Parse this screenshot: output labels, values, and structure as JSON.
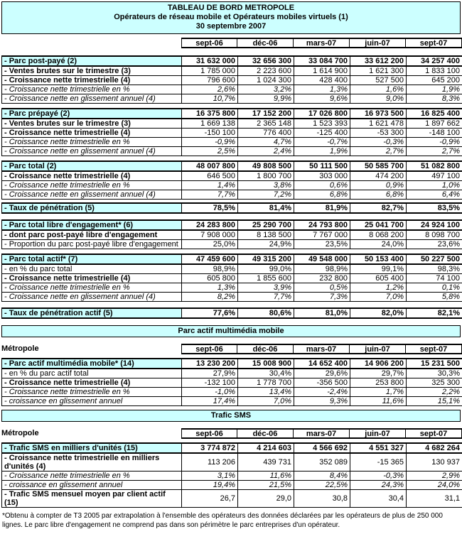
{
  "title": {
    "line1": "TABLEAU DE BORD METROPOLE",
    "line2": "Opérateurs de réseau mobile et Opérateurs mobiles virtuels (1)",
    "line3": "30 septembre 2007"
  },
  "columns": [
    "sept-06",
    "déc-06",
    "mars-07",
    "juin-07",
    "sept-07"
  ],
  "sections": {
    "metropole_label": "Métropole",
    "multimedia_banner": "Parc actif multimédia mobile",
    "sms_banner": "Trafic SMS"
  },
  "colors": {
    "accent_cyan": "#CCFFFF",
    "border": "#000000"
  },
  "blocks": {
    "postpaye": {
      "rows": [
        {
          "label": "- Parc post-payé (2)",
          "style": "head",
          "values": [
            "31 632 000",
            "32 656 300",
            "33 084 700",
            "33 612 200",
            "34 257 400"
          ]
        },
        {
          "label": "- Ventes brutes sur le trimestre (3)",
          "style": "bold",
          "values": [
            "1 785 000",
            "2 223 600",
            "1 614 900",
            "1 621 300",
            "1 833 100"
          ]
        },
        {
          "label": "- Croissance nette trimestrielle (4)",
          "style": "bold",
          "values": [
            "796 600",
            "1 024 300",
            "428 400",
            "527 500",
            "645 200"
          ]
        },
        {
          "label": "- Croissance nette trimestrielle en %",
          "style": "italic",
          "values": [
            "2,6%",
            "3,2%",
            "1,3%",
            "1,6%",
            "1,9%"
          ]
        },
        {
          "label": "- Croissance nette en glissement annuel (4)",
          "style": "italic",
          "values": [
            "10,7%",
            "9,9%",
            "9,6%",
            "9,0%",
            "8,3%"
          ]
        }
      ]
    },
    "prepaye": {
      "rows": [
        {
          "label": "- Parc prépayé (2)",
          "style": "head",
          "values": [
            "16 375 800",
            "17 152 200",
            "17 026 800",
            "16 973 500",
            "16 825 400"
          ]
        },
        {
          "label": "- Ventes brutes sur le trimestre (3)",
          "style": "bold",
          "values": [
            "1 669 138",
            "2 365 148",
            "1 523 393",
            "1 621 478",
            "1 897 662"
          ]
        },
        {
          "label": "- Croissance nette trimestrielle (4)",
          "style": "bold",
          "values": [
            "-150 100",
            "776 400",
            "-125 400",
            "-53 300",
            "-148 100"
          ]
        },
        {
          "label": "- Croissance nette trimestrielle en %",
          "style": "italic",
          "values": [
            "-0,9%",
            "4,7%",
            "-0,7%",
            "-0,3%",
            "-0,9%"
          ]
        },
        {
          "label": "- Croissance nette en glissement annuel (4)",
          "style": "italic",
          "values": [
            "2,5%",
            "2,4%",
            "1,9%",
            "2,7%",
            "2,7%"
          ]
        }
      ]
    },
    "total": {
      "rows": [
        {
          "label": "- Parc total (2)",
          "style": "head",
          "values": [
            "48 007 800",
            "49 808 500",
            "50 111 500",
            "50 585 700",
            "51 082 800"
          ]
        },
        {
          "label": "- Croissance nette trimestrielle (4)",
          "style": "bold",
          "values": [
            "646 500",
            "1 800 700",
            "303 000",
            "474 200",
            "497 100"
          ]
        },
        {
          "label": "- Croissance nette trimestrielle en %",
          "style": "italic",
          "values": [
            "1,4%",
            "3,8%",
            "0,6%",
            "0,9%",
            "1,0%"
          ]
        },
        {
          "label": "- Croissance nette en glissement annuel (4)",
          "style": "italic",
          "values": [
            "7,7%",
            "7,2%",
            "6,8%",
            "6,8%",
            "6,4%"
          ]
        }
      ]
    },
    "penetration": {
      "rows": [
        {
          "label": "- Taux de pénétration (5)",
          "style": "head",
          "values": [
            "78,5%",
            "81,4%",
            "81,9%",
            "82,7%",
            "83,5%"
          ]
        }
      ]
    },
    "libre": {
      "rows": [
        {
          "label": "- Parc total libre d'engagement* (6)",
          "style": "head",
          "values": [
            "24 283 800",
            "25 290 700",
            "24 793 800",
            "25 041 700",
            "24 924 100"
          ]
        },
        {
          "label": "- dont parc post-payé libre d'engagement",
          "style": "bold",
          "values": [
            "7 908 000",
            "8 138 500",
            "7 767 000",
            "8 068 200",
            "8 098 700"
          ]
        },
        {
          "label": "- Proportion du parc post-payé libre d'engagement",
          "style": "plain",
          "values": [
            "25,0%",
            "24,9%",
            "23,5%",
            "24,0%",
            "23,6%"
          ]
        }
      ]
    },
    "actif": {
      "rows": [
        {
          "label": "- Parc total actif* (7)",
          "style": "head",
          "values": [
            "47 459 600",
            "49 315 200",
            "49 548 000",
            "50 153 400",
            "50 227 500"
          ]
        },
        {
          "label": "- en % du parc total",
          "style": "plain",
          "values": [
            "98,9%",
            "99,0%",
            "98,9%",
            "99,1%",
            "98,3%"
          ]
        },
        {
          "label": "- Croissance nette trimestrielle (4)",
          "style": "bold",
          "values": [
            "605 800",
            "1 855 600",
            "232 800",
            "605 400",
            "74 100"
          ]
        },
        {
          "label": "- Croissance nette trimestrielle en %",
          "style": "italic",
          "values": [
            "1,3%",
            "3,9%",
            "0,5%",
            "1,2%",
            "0,1%"
          ]
        },
        {
          "label": "- Croissance nette en glissement annuel (4)",
          "style": "italic",
          "values": [
            "8,2%",
            "7,7%",
            "7,3%",
            "7,0%",
            "5,8%"
          ]
        }
      ]
    },
    "penetration_actif": {
      "rows": [
        {
          "label": "- Taux de pénétration actif (5)",
          "style": "head",
          "values": [
            "77,6%",
            "80,6%",
            "81,0%",
            "82,0%",
            "82,1%"
          ]
        }
      ]
    },
    "multimedia": {
      "rows": [
        {
          "label": "- Parc actif multimédia mobile* (14)",
          "style": "head",
          "values": [
            "13 230 200",
            "15 008 900",
            "14 652 400",
            "14 906 200",
            "15 231 500"
          ]
        },
        {
          "label": "- en % du parc actif total",
          "style": "plain",
          "values": [
            "27,9%",
            "30,4%",
            "29,6%",
            "29,7%",
            "30,3%"
          ]
        },
        {
          "label": "- Croissance nette trimestrielle (4)",
          "style": "bold",
          "values": [
            "-132 100",
            "1 778 700",
            "-356 500",
            "253 800",
            "325 300"
          ]
        },
        {
          "label": "- Croissance nette trimestrielle en %",
          "style": "italic",
          "values": [
            "-1,0%",
            "13,4%",
            "-2,4%",
            "1,7%",
            "2,2%"
          ]
        },
        {
          "label": "- croissance en glissement annuel",
          "style": "italic",
          "values": [
            "17,4%",
            "7,0%",
            "9,3%",
            "11,6%",
            "15,1%"
          ]
        }
      ]
    },
    "sms": {
      "rows": [
        {
          "label": "- Trafic SMS en milliers d'unités (15)",
          "style": "head",
          "values": [
            "3 774 872",
            "4 214 603",
            "4 566 692",
            "4 551 327",
            "4 682 264"
          ]
        },
        {
          "label": "- Croissance nette trimestrielle en milliers d'unités (4)",
          "style": "bold",
          "values": [
            "113 206",
            "439 731",
            "352 089",
            "-15 365",
            "130 937"
          ]
        },
        {
          "label": "- Croissance nette trimestrielle en %",
          "style": "italic",
          "values": [
            "3,1%",
            "11,6%",
            "8,4%",
            "-0,3%",
            "2,9%"
          ]
        },
        {
          "label": "- croissance en glissement annuel",
          "style": "italic",
          "values": [
            "19,4%",
            "21,5%",
            "22,5%",
            "24,3%",
            "24,0%"
          ]
        },
        {
          "label": "- Trafic SMS mensuel moyen par client actif (15)",
          "style": "bold",
          "values": [
            "26,7",
            "29,0",
            "30,8",
            "30,4",
            "31,1"
          ]
        }
      ]
    }
  },
  "footnote": "*Obtenu à compter de T3 2005 par extrapolation à l'ensemble des opérateurs des données déclarées par les opérateurs de plus de 250 000 lignes. Le parc libre d'engagement ne comprend pas dans son périmètre le parc entreprises d'un opérateur."
}
